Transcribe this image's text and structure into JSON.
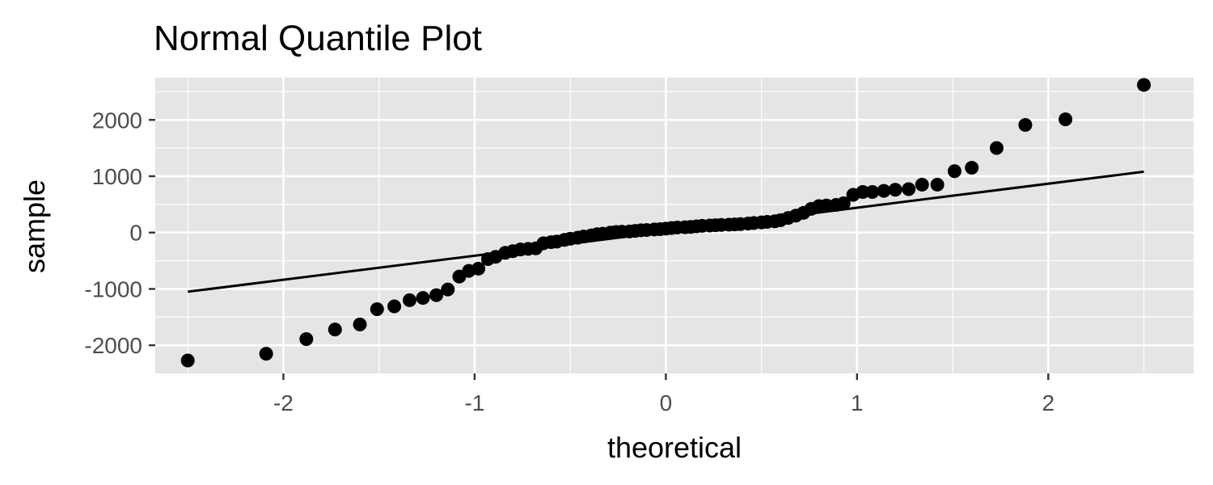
{
  "chart_data": {
    "type": "scatter",
    "title": "Normal Quantile Plot",
    "xlabel": "theoretical",
    "ylabel": "sample",
    "xlim": [
      -2.67,
      2.76
    ],
    "ylim": [
      -2500,
      2750
    ],
    "x_ticks": [
      -2,
      -1,
      0,
      1,
      2
    ],
    "x_tick_labels": [
      "-2",
      "-1",
      "0",
      "1",
      "2"
    ],
    "y_ticks": [
      -2000,
      -1000,
      0,
      1000,
      2000
    ],
    "y_tick_labels": [
      "-2000",
      "-1000",
      "0",
      "1000",
      "2000"
    ],
    "grid": true,
    "legend": "none",
    "colors": {
      "panel": "#e5e5e5",
      "grid": "#ffffff",
      "points": "#000000",
      "line": "#000000"
    },
    "series": [
      {
        "points": [
          [
            -2.5,
            -2270
          ],
          [
            -2.09,
            -2150
          ],
          [
            -1.88,
            -1890
          ],
          [
            -1.73,
            -1720
          ],
          [
            -1.6,
            -1630
          ],
          [
            -1.51,
            -1360
          ],
          [
            -1.42,
            -1310
          ],
          [
            -1.34,
            -1200
          ],
          [
            -1.27,
            -1160
          ],
          [
            -1.2,
            -1110
          ],
          [
            -1.14,
            -1010
          ],
          [
            -1.08,
            -780
          ],
          [
            -1.03,
            -680
          ],
          [
            -0.98,
            -640
          ],
          [
            -0.93,
            -470
          ],
          [
            -0.89,
            -430
          ],
          [
            -0.84,
            -360
          ],
          [
            -0.8,
            -330
          ],
          [
            -0.76,
            -300
          ],
          [
            -0.72,
            -290
          ],
          [
            -0.68,
            -280
          ],
          [
            -0.64,
            -190
          ],
          [
            -0.6,
            -170
          ],
          [
            -0.57,
            -160
          ],
          [
            -0.53,
            -130
          ],
          [
            -0.5,
            -110
          ],
          [
            -0.46,
            -90
          ],
          [
            -0.43,
            -70
          ],
          [
            -0.39,
            -50
          ],
          [
            -0.36,
            -30
          ],
          [
            -0.33,
            -20
          ],
          [
            -0.29,
            0
          ],
          [
            -0.26,
            10
          ],
          [
            -0.23,
            15
          ],
          [
            -0.19,
            20
          ],
          [
            -0.16,
            30
          ],
          [
            -0.13,
            40
          ],
          [
            -0.1,
            45
          ],
          [
            -0.06,
            55
          ],
          [
            -0.03,
            60
          ],
          [
            0.0,
            70
          ],
          [
            0.03,
            80
          ],
          [
            0.06,
            90
          ],
          [
            0.1,
            95
          ],
          [
            0.13,
            100
          ],
          [
            0.16,
            110
          ],
          [
            0.19,
            120
          ],
          [
            0.23,
            125
          ],
          [
            0.26,
            130
          ],
          [
            0.29,
            135
          ],
          [
            0.33,
            140
          ],
          [
            0.36,
            145
          ],
          [
            0.39,
            150
          ],
          [
            0.43,
            160
          ],
          [
            0.46,
            170
          ],
          [
            0.5,
            180
          ],
          [
            0.53,
            190
          ],
          [
            0.57,
            200
          ],
          [
            0.6,
            220
          ],
          [
            0.64,
            260
          ],
          [
            0.68,
            300
          ],
          [
            0.72,
            350
          ],
          [
            0.76,
            420
          ],
          [
            0.8,
            470
          ],
          [
            0.84,
            480
          ],
          [
            0.89,
            490
          ],
          [
            0.93,
            520
          ],
          [
            0.98,
            670
          ],
          [
            1.03,
            720
          ],
          [
            1.08,
            720
          ],
          [
            1.14,
            740
          ],
          [
            1.2,
            760
          ],
          [
            1.27,
            770
          ],
          [
            1.34,
            850
          ],
          [
            1.42,
            850
          ],
          [
            1.51,
            1090
          ],
          [
            1.6,
            1150
          ],
          [
            1.73,
            1500
          ],
          [
            1.88,
            1910
          ],
          [
            2.09,
            2010
          ],
          [
            2.5,
            2620
          ]
        ]
      }
    ],
    "reference_line": {
      "x": [
        -2.5,
        2.5
      ],
      "y": [
        -1050,
        1080
      ]
    }
  }
}
